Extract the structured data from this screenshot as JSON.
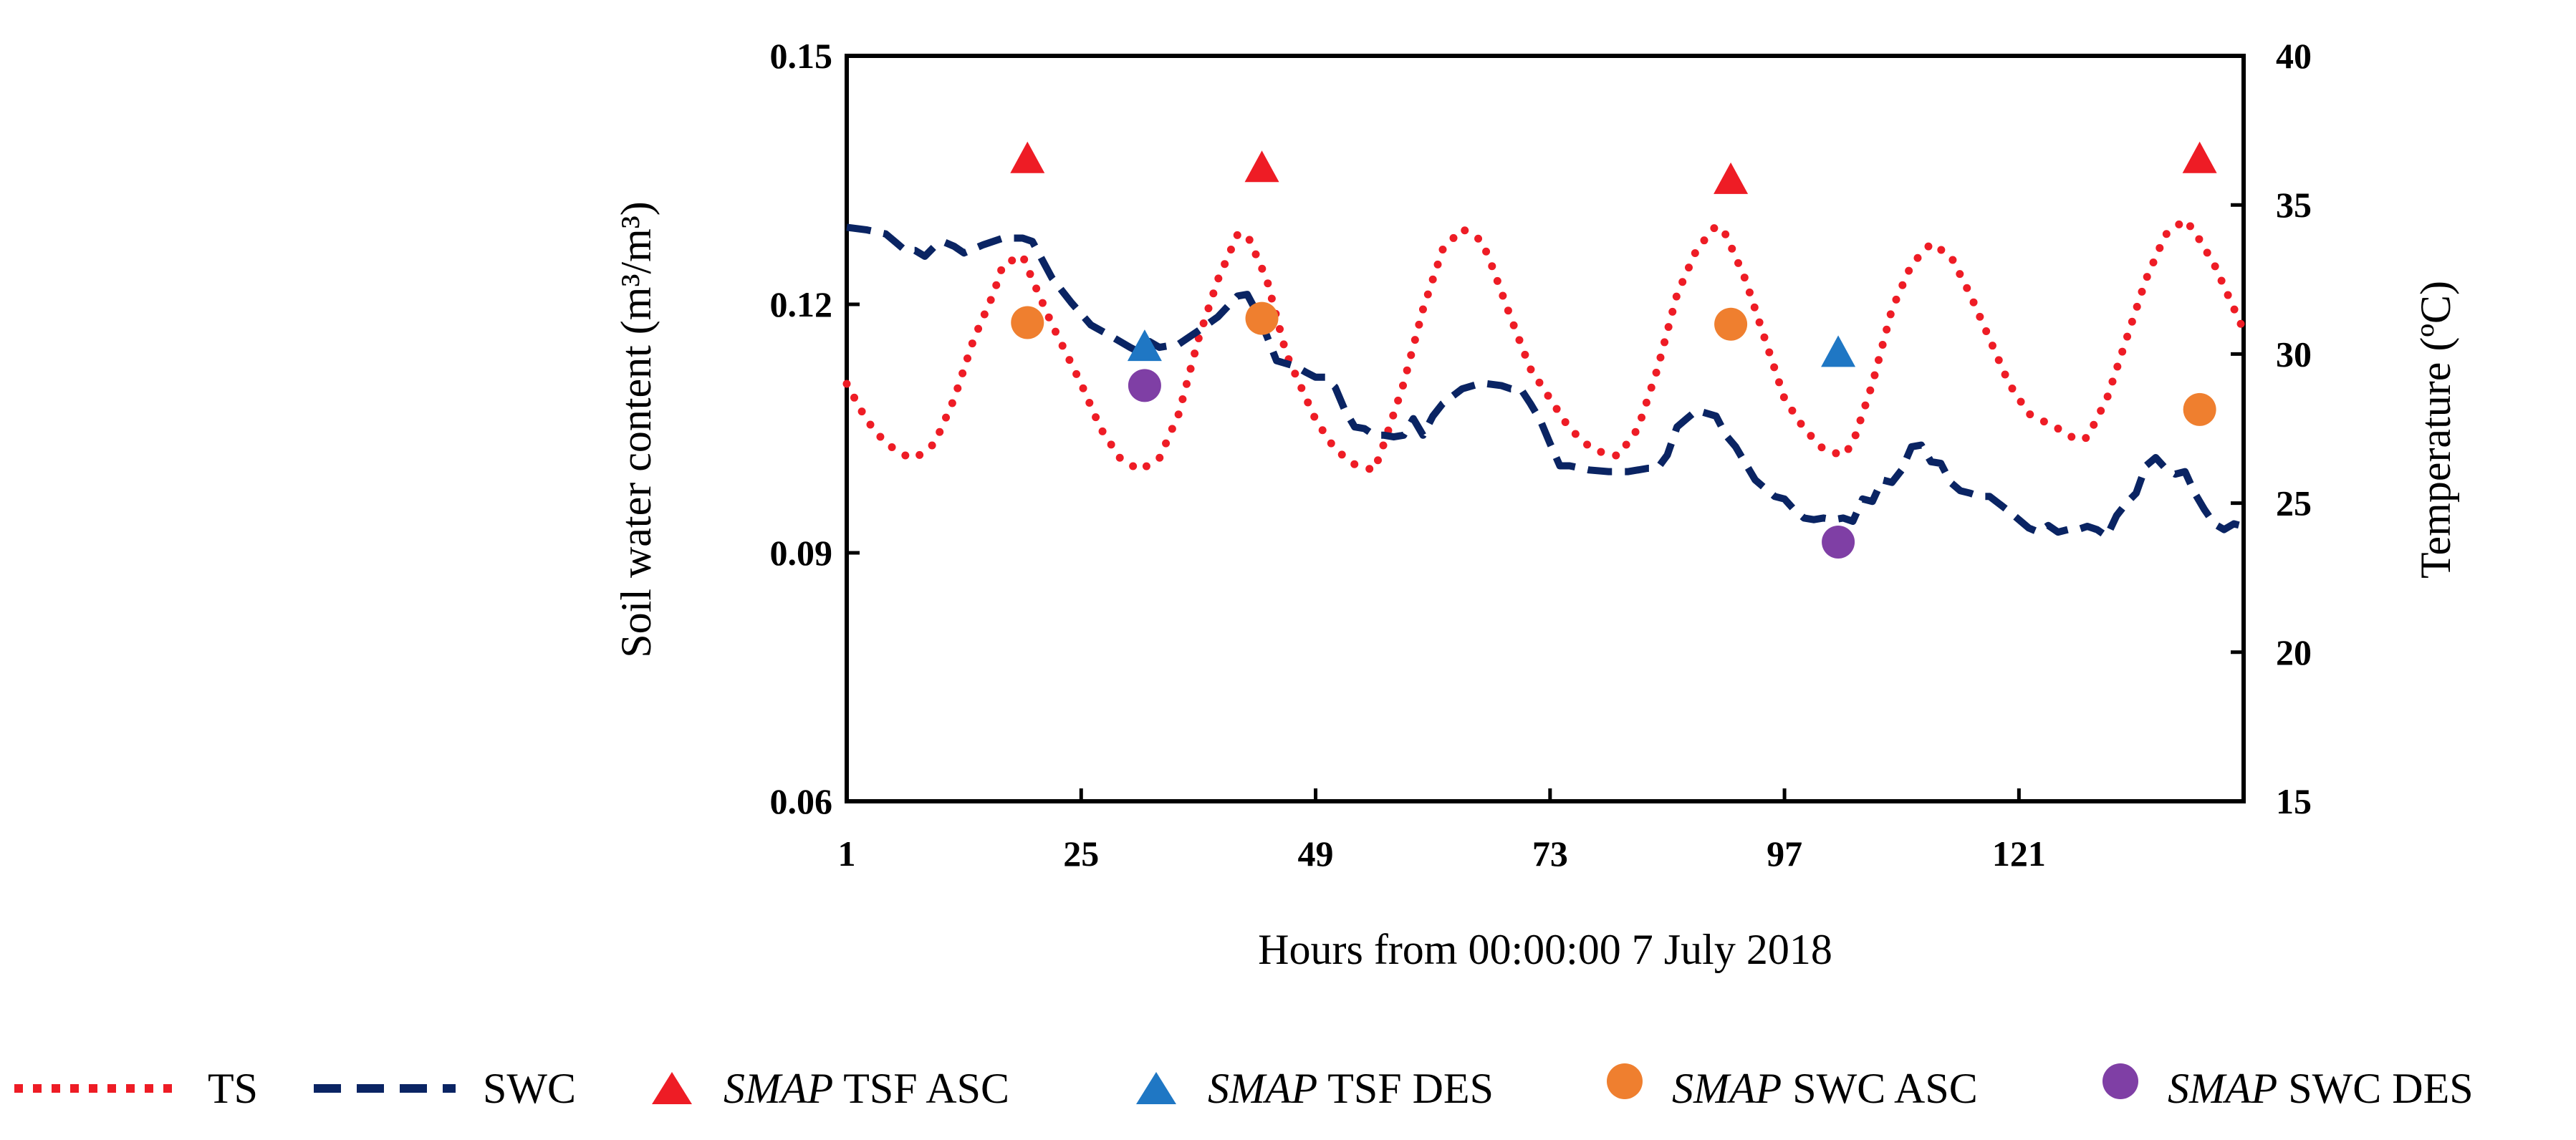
{
  "chart_data": {
    "type": "line",
    "xlabel": "Hours from 00:00:00 7 July 2018",
    "ylabel_left": "Soil water content (m³/m³)",
    "ylabel_right": "Temperature (ºC)",
    "xlim": [
      1,
      144
    ],
    "ylim_left": [
      0.06,
      0.15
    ],
    "ylim_right": [
      15,
      40
    ],
    "x_ticks": [
      1,
      25,
      49,
      73,
      97,
      121
    ],
    "y_left_ticks": [
      "0.06",
      "0.09",
      "0.12",
      "0.15"
    ],
    "y_right_ticks": [
      "15",
      "20",
      "25",
      "30",
      "35",
      "40"
    ],
    "series": [
      {
        "name": "TS",
        "axis": "right",
        "style": "dotted",
        "color": "#ee1c25",
        "x": [
          1,
          3,
          5,
          7,
          8,
          10,
          12,
          14,
          16,
          17,
          19,
          20,
          22,
          25,
          27,
          29,
          31,
          33,
          35,
          37,
          39,
          41,
          42,
          44,
          46,
          49,
          51,
          53,
          55,
          56,
          58,
          60,
          62,
          64,
          66,
          67,
          69,
          71,
          73,
          75,
          77,
          79,
          80,
          82,
          84,
          86,
          88,
          90,
          91,
          93,
          95,
          97,
          99,
          101,
          103,
          104,
          106,
          108,
          110,
          112,
          114,
          116,
          118,
          120,
          122,
          125,
          127,
          128,
          130,
          132,
          134,
          136,
          138,
          139,
          141,
          144
        ],
        "values": [
          29,
          27.8,
          27,
          26.6,
          26.5,
          27,
          28.5,
          30.5,
          32,
          33,
          33.3,
          32.5,
          31,
          29,
          27.5,
          26.5,
          26.1,
          26.5,
          28,
          30.5,
          32.5,
          34,
          34,
          32.5,
          30,
          27.8,
          26.8,
          26.3,
          26.1,
          27,
          29,
          31.5,
          33.5,
          34.2,
          33.8,
          33,
          31.2,
          29.5,
          28.5,
          27.5,
          26.9,
          26.6,
          26.6,
          27.5,
          29.5,
          32,
          33.5,
          34.3,
          34,
          32.5,
          30.5,
          28.5,
          27.5,
          26.8,
          26.6,
          27,
          29,
          31.5,
          33,
          33.7,
          33.3,
          32,
          30.5,
          29,
          28,
          27.5,
          27.1,
          27.2,
          28.5,
          30.5,
          32.5,
          34,
          34.5,
          34.1,
          33,
          30.8
        ]
      },
      {
        "name": "SWC",
        "axis": "left",
        "style": "dashed",
        "color": "#0a2463",
        "x": [
          1,
          3,
          5,
          6,
          7,
          8,
          9,
          10,
          11,
          12,
          13,
          15,
          17,
          19,
          20,
          22,
          24,
          26,
          28,
          30,
          31,
          32,
          33,
          35,
          37,
          39,
          41,
          42,
          43,
          44,
          45,
          47,
          48,
          49,
          50,
          51,
          52,
          53,
          54,
          55,
          56,
          57,
          58,
          59,
          60,
          61,
          62,
          64,
          66,
          68,
          69,
          70,
          71,
          72,
          73,
          74,
          75,
          77,
          79,
          81,
          83,
          84,
          85,
          86,
          87,
          88,
          90,
          91,
          92,
          93,
          94,
          95,
          96,
          97,
          98,
          99,
          100,
          101,
          102,
          103,
          104,
          105,
          106,
          107,
          108,
          109,
          110,
          111,
          112,
          113,
          114,
          115,
          116,
          117,
          118,
          120,
          122,
          123,
          124,
          125,
          126,
          127,
          128,
          129,
          130,
          131,
          132,
          133,
          134,
          135,
          136,
          137,
          138,
          139,
          140,
          141,
          142,
          143,
          144
        ],
        "values": [
          0.1293,
          0.129,
          0.1285,
          0.1275,
          0.1265,
          0.1265,
          0.1258,
          0.127,
          0.1275,
          0.127,
          0.1262,
          0.1272,
          0.128,
          0.128,
          0.1276,
          0.1232,
          0.1202,
          0.1175,
          0.1162,
          0.1148,
          0.1142,
          0.1155,
          0.1148,
          0.1152,
          0.1168,
          0.1185,
          0.121,
          0.1212,
          0.119,
          0.1162,
          0.1132,
          0.1125,
          0.1118,
          0.1112,
          0.1112,
          0.11,
          0.1072,
          0.1052,
          0.105,
          0.1042,
          0.1042,
          0.104,
          0.1042,
          0.1062,
          0.1042,
          0.1065,
          0.108,
          0.1098,
          0.1105,
          0.1102,
          0.1098,
          0.1098,
          0.108,
          0.106,
          0.1032,
          0.1005,
          0.1005,
          0.1,
          0.0998,
          0.0998,
          0.1002,
          0.1002,
          0.1018,
          0.1052,
          0.1062,
          0.1072,
          0.1065,
          0.1042,
          0.1028,
          0.1008,
          0.0988,
          0.0978,
          0.0968,
          0.0965,
          0.0952,
          0.0942,
          0.094,
          0.0942,
          0.094,
          0.0942,
          0.0938,
          0.0965,
          0.0962,
          0.0988,
          0.0985,
          0.1,
          0.1028,
          0.103,
          0.101,
          0.1008,
          0.0985,
          0.0975,
          0.0972,
          0.0968,
          0.0968,
          0.095,
          0.093,
          0.0925,
          0.0933,
          0.0925,
          0.0928,
          0.0928,
          0.0932,
          0.0928,
          0.092,
          0.0945,
          0.096,
          0.0972,
          0.1005,
          0.1015,
          0.1002,
          0.0995,
          0.0998,
          0.0972,
          0.0952,
          0.0935,
          0.0928,
          0.0935,
          0.0932
        ]
      }
    ],
    "markers": [
      {
        "name": "SMAP TSF ASC",
        "axis": "right",
        "shape": "triangle",
        "color": "#ee1c25",
        "points": [
          [
            19.5,
            36.5
          ],
          [
            43.5,
            36.2
          ],
          [
            91.5,
            35.8
          ],
          [
            139.5,
            36.5
          ]
        ]
      },
      {
        "name": "SMAP TSF DES",
        "axis": "right",
        "shape": "triangle",
        "color": "#1f77c4",
        "points": [
          [
            31.5,
            30.2
          ],
          [
            102.5,
            30
          ]
        ]
      },
      {
        "name": "SMAP SWC ASC",
        "axis": "left",
        "shape": "circle",
        "color": "#ef7f2f",
        "points": [
          [
            19.5,
            0.1178
          ],
          [
            43.5,
            0.1183
          ],
          [
            91.5,
            0.1176
          ],
          [
            139.5,
            0.1073
          ]
        ]
      },
      {
        "name": "SMAP SWC DES",
        "axis": "left",
        "shape": "circle",
        "color": "#7f3fa5",
        "points": [
          [
            31.5,
            0.1102
          ],
          [
            102.5,
            0.0913
          ]
        ]
      }
    ],
    "legend": [
      {
        "key": "ts",
        "prefix": "",
        "label": "TS"
      },
      {
        "key": "swc",
        "prefix": "",
        "label": "SWC"
      },
      {
        "key": "tsf_asc",
        "prefix": "SMAP",
        "label": " TSF ASC"
      },
      {
        "key": "tsf_des",
        "prefix": "SMAP",
        "label": " TSF DES"
      },
      {
        "key": "swc_asc",
        "prefix": "SMAP",
        "label": " SWC ASC"
      },
      {
        "key": "swc_des",
        "prefix": "SMAP",
        "label": " SWC DES"
      }
    ]
  }
}
